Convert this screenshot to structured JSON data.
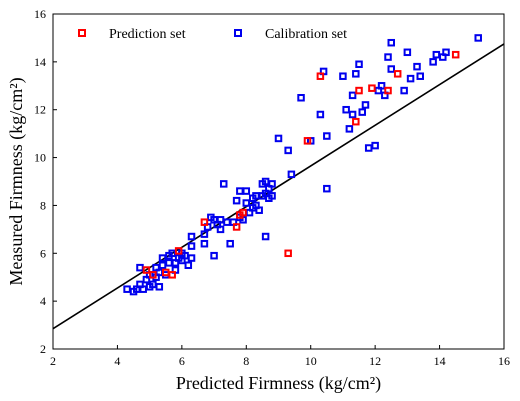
{
  "chart_data": {
    "type": "scatter",
    "title": "",
    "xlabel": "Predicted  Firmness (kg/cm²)",
    "ylabel": "Measured  Firmness (kg/cm²)",
    "xlim": [
      2,
      16
    ],
    "ylim": [
      2,
      16
    ],
    "xticks": [
      "2",
      "4",
      "6",
      "8",
      "10",
      "12",
      "14",
      "16"
    ],
    "yticks": [
      "2",
      "4",
      "6",
      "8",
      "10",
      "12",
      "14",
      "16"
    ],
    "grid": false,
    "legend_position": "top",
    "fit_line": {
      "x": [
        2,
        16
      ],
      "y": [
        2.85,
        14.75
      ],
      "color": "#000000"
    },
    "series": [
      {
        "name": "Prediction set",
        "color": "#ff0000",
        "marker": "open-square",
        "points": [
          [
            4.9,
            5.3
          ],
          [
            5.1,
            5.1
          ],
          [
            5.5,
            5.2
          ],
          [
            5.7,
            5.1
          ],
          [
            5.9,
            6.1
          ],
          [
            6.7,
            7.3
          ],
          [
            7.7,
            7.1
          ],
          [
            7.8,
            7.6
          ],
          [
            7.9,
            7.7
          ],
          [
            9.3,
            6.0
          ],
          [
            9.9,
            10.7
          ],
          [
            10.3,
            13.4
          ],
          [
            11.4,
            11.5
          ],
          [
            11.5,
            12.8
          ],
          [
            11.9,
            12.9
          ],
          [
            12.4,
            12.8
          ],
          [
            12.7,
            13.5
          ],
          [
            14.5,
            14.3
          ]
        ]
      },
      {
        "name": "Calibration set",
        "color": "#0000ee",
        "marker": "open-square",
        "points": [
          [
            4.3,
            4.5
          ],
          [
            4.5,
            4.4
          ],
          [
            4.6,
            4.5
          ],
          [
            4.7,
            4.7
          ],
          [
            4.7,
            5.4
          ],
          [
            4.8,
            4.5
          ],
          [
            4.9,
            4.9
          ],
          [
            5.0,
            4.6
          ],
          [
            5.0,
            5.1
          ],
          [
            5.1,
            4.7
          ],
          [
            5.2,
            5.0
          ],
          [
            5.2,
            5.4
          ],
          [
            5.3,
            4.6
          ],
          [
            5.3,
            5.2
          ],
          [
            5.4,
            5.5
          ],
          [
            5.4,
            5.8
          ],
          [
            5.5,
            5.1
          ],
          [
            5.6,
            5.9
          ],
          [
            5.6,
            5.6
          ],
          [
            5.7,
            6.0
          ],
          [
            5.8,
            5.6
          ],
          [
            5.8,
            5.3
          ],
          [
            5.9,
            5.8
          ],
          [
            6.0,
            5.7
          ],
          [
            6.0,
            6.0
          ],
          [
            6.1,
            5.9
          ],
          [
            6.2,
            5.5
          ],
          [
            6.3,
            6.3
          ],
          [
            6.3,
            6.7
          ],
          [
            6.3,
            5.8
          ],
          [
            6.7,
            6.4
          ],
          [
            6.7,
            6.8
          ],
          [
            6.8,
            7.1
          ],
          [
            6.9,
            7.5
          ],
          [
            7.0,
            7.4
          ],
          [
            7.0,
            5.9
          ],
          [
            7.1,
            7.2
          ],
          [
            7.2,
            7.0
          ],
          [
            7.2,
            7.4
          ],
          [
            7.3,
            8.9
          ],
          [
            7.4,
            7.3
          ],
          [
            7.5,
            6.4
          ],
          [
            7.6,
            7.3
          ],
          [
            7.7,
            8.2
          ],
          [
            7.8,
            8.6
          ],
          [
            7.8,
            7.5
          ],
          [
            7.9,
            7.4
          ],
          [
            8.0,
            8.6
          ],
          [
            8.0,
            8.1
          ],
          [
            8.1,
            7.7
          ],
          [
            8.2,
            7.9
          ],
          [
            8.2,
            8.3
          ],
          [
            8.3,
            8.0
          ],
          [
            8.3,
            8.4
          ],
          [
            8.4,
            7.8
          ],
          [
            8.5,
            8.4
          ],
          [
            8.5,
            8.9
          ],
          [
            8.6,
            8.5
          ],
          [
            8.6,
            6.7
          ],
          [
            8.6,
            9.0
          ],
          [
            8.7,
            8.7
          ],
          [
            8.7,
            8.3
          ],
          [
            8.8,
            8.4
          ],
          [
            8.8,
            8.9
          ],
          [
            9.0,
            10.8
          ],
          [
            9.3,
            10.3
          ],
          [
            9.4,
            9.3
          ],
          [
            9.7,
            12.5
          ],
          [
            10.0,
            10.7
          ],
          [
            10.3,
            11.8
          ],
          [
            10.4,
            13.6
          ],
          [
            10.5,
            10.9
          ],
          [
            10.5,
            8.7
          ],
          [
            11.0,
            13.4
          ],
          [
            11.1,
            12.0
          ],
          [
            11.2,
            11.2
          ],
          [
            11.3,
            12.6
          ],
          [
            11.3,
            11.8
          ],
          [
            11.4,
            13.5
          ],
          [
            11.5,
            13.9
          ],
          [
            11.6,
            11.9
          ],
          [
            11.7,
            12.2
          ],
          [
            11.8,
            10.4
          ],
          [
            12.0,
            10.5
          ],
          [
            12.1,
            12.8
          ],
          [
            12.2,
            13.0
          ],
          [
            12.3,
            12.6
          ],
          [
            12.4,
            14.2
          ],
          [
            12.5,
            14.8
          ],
          [
            12.5,
            13.7
          ],
          [
            12.9,
            12.8
          ],
          [
            13.0,
            14.4
          ],
          [
            13.1,
            13.3
          ],
          [
            13.3,
            13.8
          ],
          [
            13.4,
            13.4
          ],
          [
            13.8,
            14.0
          ],
          [
            13.9,
            14.3
          ],
          [
            14.1,
            14.2
          ],
          [
            14.2,
            14.4
          ],
          [
            15.2,
            15.0
          ]
        ]
      }
    ]
  }
}
